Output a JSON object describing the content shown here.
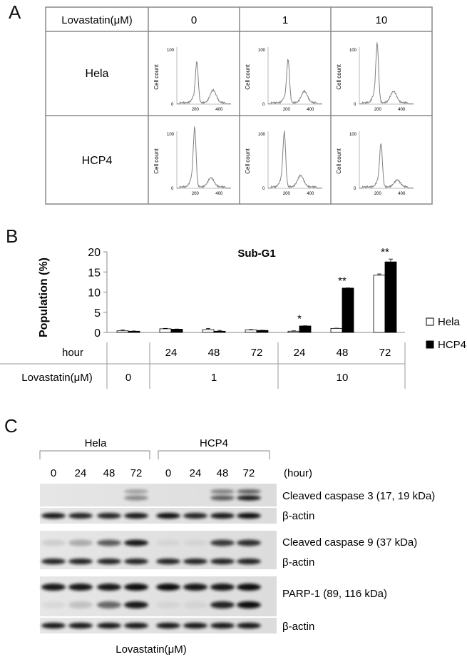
{
  "panel_a": {
    "letter": "A",
    "header": {
      "label": "Lovastatin(μM)",
      "concentrations": [
        "0",
        "1",
        "10"
      ]
    },
    "rows": [
      "Hela",
      "HCP4"
    ],
    "histogram_axis": {
      "ylabel": "Cell count",
      "ytick_top": "100",
      "ytick_zero": "0",
      "xticks": [
        "200",
        "400"
      ]
    },
    "histogram_color": "#808080"
  },
  "panel_b": {
    "letter": "B",
    "legend": [
      "Hela",
      "HCP4"
    ],
    "hour_label": "hour",
    "hours": [
      "24",
      "48",
      "72",
      "24",
      "48",
      "72"
    ],
    "lovastatin_label": "Lovastatin(μM)",
    "doses": [
      "0",
      "1",
      "10"
    ],
    "significance": [
      "*",
      "**",
      "**"
    ]
  },
  "chart_data": {
    "type": "bar",
    "title": "Sub-G1",
    "ylabel": "Population (%)",
    "ylim": [
      0,
      20
    ],
    "yticks": [
      0,
      5,
      10,
      15,
      20
    ],
    "categories": [
      "0",
      "1 μM 24 h",
      "1 μM 48 h",
      "1 μM 72 h",
      "10 μM 24 h",
      "10 μM 48 h",
      "10 μM 72 h"
    ],
    "series": [
      {
        "name": "Hela",
        "values": [
          0.4,
          0.9,
          0.7,
          0.6,
          0.3,
          1.0,
          14.2
        ],
        "errors": [
          0.2,
          0.1,
          0.3,
          0.1,
          0.1,
          0.05,
          0.3
        ],
        "color": "#ffffff"
      },
      {
        "name": "HCP4",
        "values": [
          0.3,
          0.8,
          0.3,
          0.5,
          1.6,
          11.0,
          17.5
        ],
        "errors": [
          0.05,
          0.05,
          0.2,
          0.05,
          0.05,
          0.05,
          0.7
        ],
        "color": "#000000"
      }
    ],
    "legend_position": "right",
    "grid": false
  },
  "panel_c": {
    "letter": "C",
    "groups": [
      "Hela",
      "HCP4"
    ],
    "lanes": [
      "0",
      "24",
      "48",
      "72",
      "0",
      "24",
      "48",
      "72"
    ],
    "unit_label": "(hour)",
    "blot_labels": [
      "Cleaved caspase 3 (17, 19 kDa)",
      "β-actin",
      "Cleaved caspase 9 (37 kDa)",
      "β-actin",
      "PARP-1 (89, 116 kDa)",
      "β-actin"
    ],
    "footer": "Lovastatin(μM)"
  }
}
